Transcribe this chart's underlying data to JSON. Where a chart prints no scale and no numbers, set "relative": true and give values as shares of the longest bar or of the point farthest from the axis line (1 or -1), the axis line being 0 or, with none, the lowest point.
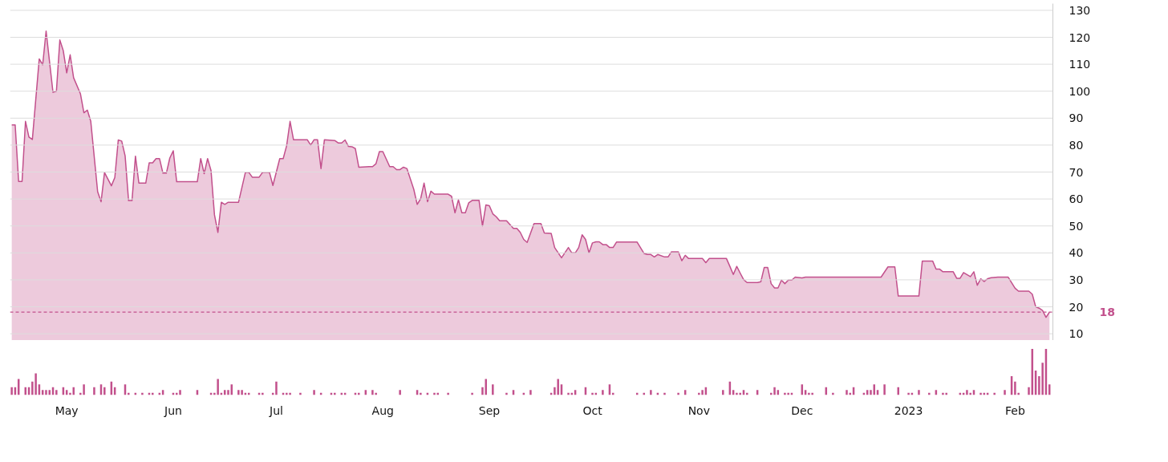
{
  "chart_data": [
    {
      "type": "area",
      "xlim": [
        "2022-04-14T12:00",
        "2023-02-12"
      ],
      "ylim": [
        7.5,
        132.5
      ],
      "yticks": [
        10,
        20,
        30,
        40,
        50,
        60,
        70,
        80,
        90,
        100,
        110,
        120,
        130
      ],
      "grid": "y",
      "tick_labels": "y",
      "ref_lines": [
        {
          "axis": "y",
          "value": 18,
          "label": "18",
          "color": "#c2508c",
          "line_style": "dashed"
        }
      ],
      "series": [
        {
          "color": "#c2508c",
          "x": [
            "2022-04-15",
            "2022-04-16",
            "2022-04-17",
            "2022-04-18",
            "2022-04-19",
            "2022-04-20",
            "2022-04-21",
            "2022-04-23",
            "2022-04-24",
            "2022-04-25",
            "2022-04-27",
            "2022-04-28",
            "2022-04-29",
            "2022-04-30",
            "2022-05-01",
            "2022-05-02",
            "2022-05-03",
            "2022-05-05",
            "2022-05-06",
            "2022-05-07",
            "2022-05-08",
            "2022-05-10",
            "2022-05-11",
            "2022-05-12",
            "2022-05-14",
            "2022-05-15",
            "2022-05-16",
            "2022-05-17",
            "2022-05-18",
            "2022-05-19",
            "2022-05-20",
            "2022-05-21",
            "2022-05-22",
            "2022-05-24",
            "2022-05-25",
            "2022-05-26",
            "2022-05-27",
            "2022-05-28",
            "2022-05-29",
            "2022-05-30",
            "2022-05-31",
            "2022-06-01",
            "2022-06-02",
            "2022-06-08",
            "2022-06-09",
            "2022-06-10",
            "2022-06-11",
            "2022-06-12",
            "2022-06-13",
            "2022-06-14",
            "2022-06-15",
            "2022-06-16",
            "2022-06-17",
            "2022-06-20",
            "2022-06-22",
            "2022-06-23",
            "2022-06-24",
            "2022-06-26",
            "2022-06-27",
            "2022-06-29",
            "2022-06-30",
            "2022-07-02",
            "2022-07-03",
            "2022-07-04",
            "2022-07-05",
            "2022-07-06",
            "2022-07-10",
            "2022-07-11",
            "2022-07-12",
            "2022-07-13",
            "2022-07-14",
            "2022-07-15",
            "2022-07-18",
            "2022-07-19",
            "2022-07-20",
            "2022-07-21",
            "2022-07-22",
            "2022-07-23",
            "2022-07-24",
            "2022-07-25",
            "2022-07-28",
            "2022-07-29",
            "2022-07-30",
            "2022-07-31",
            "2022-08-01",
            "2022-08-03",
            "2022-08-04",
            "2022-08-05",
            "2022-08-06",
            "2022-08-07",
            "2022-08-08",
            "2022-08-10",
            "2022-08-11",
            "2022-08-12",
            "2022-08-13",
            "2022-08-14",
            "2022-08-15",
            "2022-08-16",
            "2022-08-20",
            "2022-08-21",
            "2022-08-22",
            "2022-08-23",
            "2022-08-24",
            "2022-08-25",
            "2022-08-26",
            "2022-08-27",
            "2022-08-29",
            "2022-08-30",
            "2022-08-31",
            "2022-09-01",
            "2022-09-02",
            "2022-09-03",
            "2022-09-04",
            "2022-09-06",
            "2022-09-08",
            "2022-09-09",
            "2022-09-10",
            "2022-09-11",
            "2022-09-12",
            "2022-09-14",
            "2022-09-16",
            "2022-09-17",
            "2022-09-19",
            "2022-09-20",
            "2022-09-22",
            "2022-09-24",
            "2022-09-25",
            "2022-09-26",
            "2022-09-27",
            "2022-09-28",
            "2022-09-29",
            "2022-09-30",
            "2022-10-01",
            "2022-10-02",
            "2022-10-03",
            "2022-10-04",
            "2022-10-05",
            "2022-10-06",
            "2022-10-07",
            "2022-10-08",
            "2022-10-14",
            "2022-10-16",
            "2022-10-17",
            "2022-10-18",
            "2022-10-19",
            "2022-10-20",
            "2022-10-22",
            "2022-10-23",
            "2022-10-24",
            "2022-10-26",
            "2022-10-27",
            "2022-10-28",
            "2022-10-29",
            "2022-11-02",
            "2022-11-03",
            "2022-11-04",
            "2022-11-09",
            "2022-11-10",
            "2022-11-11",
            "2022-11-12",
            "2022-11-13",
            "2022-11-14",
            "2022-11-15",
            "2022-11-18",
            "2022-11-19",
            "2022-11-20",
            "2022-11-21",
            "2022-11-22",
            "2022-11-23",
            "2022-11-24",
            "2022-11-25",
            "2022-11-26",
            "2022-11-27",
            "2022-11-28",
            "2022-11-29",
            "2022-12-01",
            "2022-12-02",
            "2022-12-24",
            "2022-12-26",
            "2022-12-28",
            "2022-12-29",
            "2023-01-04",
            "2023-01-05",
            "2023-01-08",
            "2023-01-09",
            "2023-01-10",
            "2023-01-11",
            "2023-01-14",
            "2023-01-15",
            "2023-01-16",
            "2023-01-17",
            "2023-01-19",
            "2023-01-20",
            "2023-01-21",
            "2023-01-22",
            "2023-01-23",
            "2023-01-24",
            "2023-01-25",
            "2023-01-27",
            "2023-01-30",
            "2023-02-01",
            "2023-02-02",
            "2023-02-05",
            "2023-02-06",
            "2023-02-07",
            "2023-02-08",
            "2023-02-09",
            "2023-02-10",
            "2023-02-11"
          ],
          "values": [
            87.5,
            87.5,
            66.5,
            66.5,
            88.8,
            83,
            82.1,
            112,
            109.8,
            122.3,
            99.6,
            100,
            119,
            115,
            106.8,
            113.5,
            105,
            99,
            92,
            93,
            88.8,
            62.7,
            59,
            69.8,
            64.9,
            68,
            81.9,
            81.5,
            76,
            59.4,
            59.4,
            75.9,
            65.9,
            65.9,
            73.4,
            73.4,
            75,
            75,
            69.6,
            69.6,
            75.2,
            77.9,
            66.4,
            66.4,
            75,
            69.4,
            75,
            70.5,
            54.1,
            47.6,
            58.8,
            58,
            58.8,
            58.8,
            69.9,
            69.9,
            68.1,
            68.1,
            69.9,
            69.9,
            65,
            75,
            75,
            79.8,
            88.8,
            82,
            82,
            80,
            82,
            82,
            71.3,
            82,
            81.7,
            80.8,
            80.8,
            81.9,
            79.5,
            79.4,
            78.7,
            71.8,
            72,
            72,
            73.1,
            77.6,
            77.6,
            72,
            72,
            70.9,
            70.9,
            71.8,
            71.3,
            63.6,
            58,
            60.1,
            65.9,
            59,
            62.9,
            61.8,
            61.8,
            61,
            54.9,
            59.7,
            54.9,
            54.9,
            58.6,
            59.5,
            59.5,
            50,
            57.8,
            57.5,
            54.5,
            53.4,
            51.9,
            51.9,
            49.1,
            49.1,
            47.6,
            45,
            43.9,
            50.9,
            50.9,
            47.4,
            47.2,
            42,
            38.2,
            42,
            40,
            40,
            42,
            46.7,
            45,
            40,
            43.7,
            44.1,
            44.1,
            43.1,
            43.1,
            42,
            42,
            44,
            44,
            39.8,
            39.4,
            39.4,
            38.5,
            39.4,
            38.5,
            38.5,
            40.4,
            40.4,
            37.1,
            39.1,
            37.9,
            37.9,
            36.4,
            37.9,
            37.9,
            35,
            32,
            35,
            32.5,
            30.1,
            29,
            29,
            29.3,
            34.6,
            34.6,
            28.6,
            27,
            27,
            29.9,
            28.6,
            29.9,
            29.9,
            31,
            30.7,
            31,
            31,
            34.8,
            34.8,
            24,
            24,
            37,
            37,
            34,
            34,
            33,
            33,
            30.6,
            30.6,
            32.7,
            31.2,
            33,
            28,
            30.4,
            29.4,
            30.4,
            30.8,
            31,
            31,
            26.9,
            25.8,
            25.8,
            24.7,
            20,
            19.5,
            18.6,
            16.1,
            18
          ]
        }
      ]
    },
    {
      "type": "bar",
      "relative": true,
      "xlim": [
        "2022-04-14T12:00",
        "2023-02-12"
      ],
      "xticks": [
        {
          "value": "2022-05-01",
          "label": "May"
        },
        {
          "value": "2022-06-01",
          "label": "Jun"
        },
        {
          "value": "2022-07-01",
          "label": "Jul"
        },
        {
          "value": "2022-08-01",
          "label": "Aug"
        },
        {
          "value": "2022-09-01",
          "label": "Sep"
        },
        {
          "value": "2022-10-01",
          "label": "Oct"
        },
        {
          "value": "2022-11-01",
          "label": "Nov"
        },
        {
          "value": "2022-12-01",
          "label": "Dec"
        },
        {
          "value": "2023-01-01",
          "label": "2023"
        },
        {
          "value": "2023-02-01",
          "label": "Feb"
        }
      ],
      "tick_labels": "x",
      "series": [
        {
          "color": "#c2508c",
          "x": [
            "2022-04-15",
            "2022-04-16",
            "2022-04-17",
            "2022-04-19",
            "2022-04-20",
            "2022-04-21",
            "2022-04-22",
            "2022-04-23",
            "2022-04-24",
            "2022-04-25",
            "2022-04-26",
            "2022-04-27",
            "2022-04-28",
            "2022-04-30",
            "2022-05-01",
            "2022-05-02",
            "2022-05-03",
            "2022-05-05",
            "2022-05-06",
            "2022-05-09",
            "2022-05-11",
            "2022-05-12",
            "2022-05-14",
            "2022-05-15",
            "2022-05-18",
            "2022-05-19",
            "2022-05-21",
            "2022-05-23",
            "2022-05-25",
            "2022-05-26",
            "2022-05-28",
            "2022-05-29",
            "2022-06-01",
            "2022-06-02",
            "2022-06-03",
            "2022-06-08",
            "2022-06-12",
            "2022-06-13",
            "2022-06-14",
            "2022-06-15",
            "2022-06-16",
            "2022-06-17",
            "2022-06-18",
            "2022-06-20",
            "2022-06-21",
            "2022-06-22",
            "2022-06-23",
            "2022-06-26",
            "2022-06-27",
            "2022-06-30",
            "2022-07-01",
            "2022-07-03",
            "2022-07-04",
            "2022-07-05",
            "2022-07-08",
            "2022-07-12",
            "2022-07-14",
            "2022-07-17",
            "2022-07-18",
            "2022-07-20",
            "2022-07-21",
            "2022-07-24",
            "2022-07-25",
            "2022-07-27",
            "2022-07-29",
            "2022-07-30",
            "2022-08-06",
            "2022-08-11",
            "2022-08-12",
            "2022-08-14",
            "2022-08-16",
            "2022-08-17",
            "2022-08-20",
            "2022-08-27",
            "2022-08-30",
            "2022-08-31",
            "2022-09-02",
            "2022-09-06",
            "2022-09-08",
            "2022-09-11",
            "2022-09-13",
            "2022-09-19",
            "2022-09-20",
            "2022-09-21",
            "2022-09-22",
            "2022-09-24",
            "2022-09-25",
            "2022-09-26",
            "2022-09-29",
            "2022-10-01",
            "2022-10-02",
            "2022-10-04",
            "2022-10-06",
            "2022-10-07",
            "2022-10-14",
            "2022-10-16",
            "2022-10-18",
            "2022-10-20",
            "2022-10-22",
            "2022-10-26",
            "2022-10-28",
            "2022-11-01",
            "2022-11-02",
            "2022-11-03",
            "2022-11-08",
            "2022-11-10",
            "2022-11-11",
            "2022-11-12",
            "2022-11-13",
            "2022-11-14",
            "2022-11-15",
            "2022-11-18",
            "2022-11-22",
            "2022-11-23",
            "2022-11-24",
            "2022-11-26",
            "2022-11-27",
            "2022-11-28",
            "2022-12-01",
            "2022-12-02",
            "2022-12-03",
            "2022-12-04",
            "2022-12-08",
            "2022-12-10",
            "2022-12-14",
            "2022-12-15",
            "2022-12-16",
            "2022-12-19",
            "2022-12-20",
            "2022-12-21",
            "2022-12-22",
            "2022-12-23",
            "2022-12-25",
            "2022-12-29",
            "2023-01-01",
            "2023-01-02",
            "2023-01-04",
            "2023-01-07",
            "2023-01-09",
            "2023-01-11",
            "2023-01-12",
            "2023-01-16",
            "2023-01-17",
            "2023-01-18",
            "2023-01-19",
            "2023-01-20",
            "2023-01-22",
            "2023-01-23",
            "2023-01-24",
            "2023-01-26",
            "2023-01-29",
            "2023-01-31",
            "2023-02-01",
            "2023-02-02",
            "2023-02-05",
            "2023-02-06",
            "2023-02-07",
            "2023-02-08",
            "2023-02-09",
            "2023-02-10",
            "2023-02-11"
          ],
          "values": [
            0.17,
            0.17,
            0.35,
            0.17,
            0.17,
            0.29,
            0.47,
            0.23,
            0.11,
            0.11,
            0.11,
            0.17,
            0.11,
            0.17,
            0.11,
            0.05,
            0.17,
            0.05,
            0.23,
            0.17,
            0.23,
            0.17,
            0.29,
            0.17,
            0.23,
            0.05,
            0.05,
            0.05,
            0.05,
            0.05,
            0.05,
            0.11,
            0.05,
            0.05,
            0.11,
            0.11,
            0.05,
            0.05,
            0.35,
            0.05,
            0.11,
            0.11,
            0.23,
            0.11,
            0.11,
            0.05,
            0.05,
            0.05,
            0.05,
            0.05,
            0.29,
            0.05,
            0.05,
            0.05,
            0.05,
            0.11,
            0.05,
            0.05,
            0.05,
            0.05,
            0.05,
            0.05,
            0.05,
            0.11,
            0.11,
            0.05,
            0.11,
            0.11,
            0.05,
            0.05,
            0.05,
            0.05,
            0.05,
            0.05,
            0.17,
            0.35,
            0.23,
            0.05,
            0.11,
            0.05,
            0.11,
            0.05,
            0.17,
            0.35,
            0.23,
            0.05,
            0.05,
            0.11,
            0.17,
            0.05,
            0.05,
            0.11,
            0.23,
            0.05,
            0.05,
            0.05,
            0.11,
            0.05,
            0.05,
            0.05,
            0.11,
            0.05,
            0.11,
            0.17,
            0.11,
            0.29,
            0.11,
            0.05,
            0.05,
            0.11,
            0.05,
            0.11,
            0.05,
            0.17,
            0.11,
            0.05,
            0.05,
            0.05,
            0.23,
            0.11,
            0.05,
            0.05,
            0.17,
            0.05,
            0.11,
            0.05,
            0.17,
            0.05,
            0.11,
            0.11,
            0.23,
            0.11,
            0.23,
            0.17,
            0.05,
            0.05,
            0.11,
            0.05,
            0.11,
            0.05,
            0.05,
            0.05,
            0.05,
            0.11,
            0.05,
            0.11,
            0.05,
            0.05,
            0.05,
            0.05,
            0.11,
            0.41,
            0.29,
            0.05,
            0.17,
            1,
            0.53,
            0.41,
            0.7,
            1,
            0.23
          ]
        }
      ]
    }
  ]
}
